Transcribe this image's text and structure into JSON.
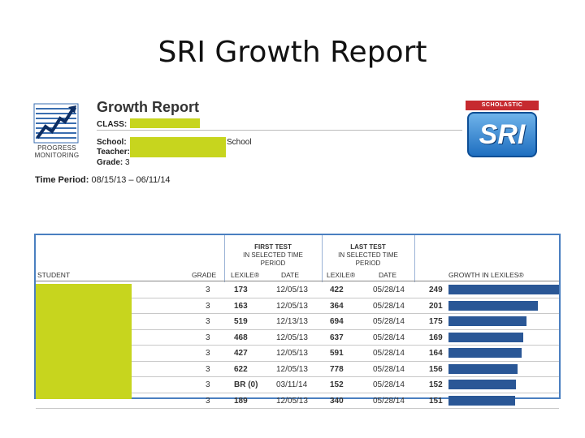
{
  "slide": {
    "title": "SRI Growth Report"
  },
  "report": {
    "title": "Growth Report",
    "logo_label": "PROGRESS MONITORING",
    "class_label": "CLASS:",
    "school_label": "School:",
    "school_value_tail": "School",
    "teacher_label": "Teacher:",
    "grade_label": "Grade:",
    "grade_value": "3",
    "time_period_label": "Time Period:",
    "time_period_value": "08/15/13 – 06/11/14",
    "publisher": "SCHOLASTIC",
    "product": "SRI",
    "colors": {
      "redaction": "#c7d51e",
      "bar": "#2a5796",
      "table_border": "#4a7fc0",
      "publisher_red": "#c62a2f"
    }
  },
  "table": {
    "group_first": {
      "main": "FIRST TEST",
      "sub1": "IN SELECTED TIME",
      "sub2": "PERIOD"
    },
    "group_last": {
      "main": "LAST TEST",
      "sub1": "IN SELECTED TIME",
      "sub2": "PERIOD"
    },
    "headers": {
      "student": "STUDENT",
      "grade": "GRADE",
      "first_lexile": "LEXILE®",
      "first_date": "DATE",
      "last_lexile": "LEXILE®",
      "last_date": "DATE",
      "growth": "GROWTH IN LEXILES®"
    },
    "max_growth": 249,
    "rows": [
      {
        "grade": "3",
        "first_lexile": "173",
        "first_date": "12/05/13",
        "last_lexile": "422",
        "last_date": "05/28/14",
        "growth": 249
      },
      {
        "grade": "3",
        "first_lexile": "163",
        "first_date": "12/05/13",
        "last_lexile": "364",
        "last_date": "05/28/14",
        "growth": 201
      },
      {
        "grade": "3",
        "first_lexile": "519",
        "first_date": "12/13/13",
        "last_lexile": "694",
        "last_date": "05/28/14",
        "growth": 175
      },
      {
        "grade": "3",
        "first_lexile": "468",
        "first_date": "12/05/13",
        "last_lexile": "637",
        "last_date": "05/28/14",
        "growth": 169
      },
      {
        "grade": "3",
        "first_lexile": "427",
        "first_date": "12/05/13",
        "last_lexile": "591",
        "last_date": "05/28/14",
        "growth": 164
      },
      {
        "grade": "3",
        "first_lexile": "622",
        "first_date": "12/05/13",
        "last_lexile": "778",
        "last_date": "05/28/14",
        "growth": 156
      },
      {
        "grade": "3",
        "first_lexile": "BR (0)",
        "first_date": "03/11/14",
        "last_lexile": "152",
        "last_date": "05/28/14",
        "growth": 152
      },
      {
        "grade": "3",
        "first_lexile": "189",
        "first_date": "12/05/13",
        "last_lexile": "340",
        "last_date": "05/28/14",
        "growth": 151
      }
    ]
  }
}
